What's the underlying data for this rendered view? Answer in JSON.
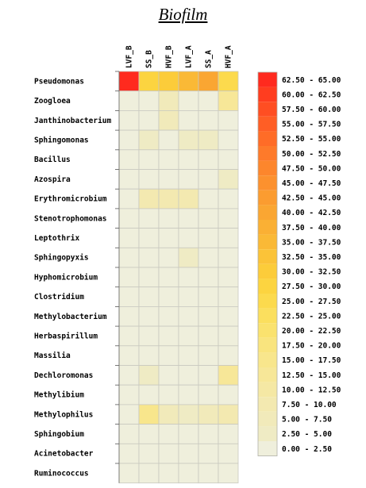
{
  "chart_data": {
    "type": "heatmap",
    "title": "Biofilm",
    "columns": [
      "LVF_B",
      "SS_B",
      "HVF_B",
      "LVF_A",
      "SS_A",
      "HVF_A"
    ],
    "rows": [
      "Pseudomonas",
      "Zoogloea",
      "Janthinobacterium",
      "Sphingomonas",
      "Bacillus",
      "Azospira",
      "Erythromicrobium",
      "Stenotrophomonas",
      "Leptothrix",
      "Sphingopyxis",
      "Hyphomicrobium",
      "Clostridium",
      "Methylobacterium",
      "Herbaspirillum",
      "Massilia",
      "Dechloromonas",
      "Methylibium",
      "Methylophilus",
      "Sphingobium",
      "Acinetobacter",
      "Ruminococcus"
    ],
    "values": [
      [
        64,
        28,
        30,
        37,
        40,
        26
      ],
      [
        1.5,
        1.5,
        6,
        1.5,
        1.5,
        14
      ],
      [
        1.5,
        1.5,
        6,
        1.5,
        1.5,
        1.5
      ],
      [
        1.5,
        4,
        1.5,
        3,
        3,
        1.5
      ],
      [
        1.5,
        1.5,
        1.5,
        1.5,
        1.5,
        1.5
      ],
      [
        1.5,
        1.5,
        1.5,
        1.5,
        1.5,
        3
      ],
      [
        1.5,
        8,
        8,
        8,
        1.5,
        1.5
      ],
      [
        1.5,
        1.5,
        1.5,
        1.5,
        1.5,
        1.5
      ],
      [
        1.5,
        1.5,
        1.5,
        1.5,
        1.5,
        1.5
      ],
      [
        1.5,
        1.5,
        1.5,
        4,
        1.5,
        1.5
      ],
      [
        1.5,
        1.5,
        1.5,
        1.5,
        1.5,
        1.5
      ],
      [
        1.5,
        1.5,
        1.5,
        1.5,
        1.5,
        1.5
      ],
      [
        1.5,
        1.5,
        1.5,
        1.5,
        1.5,
        1.5
      ],
      [
        1.5,
        1.5,
        1.5,
        1.5,
        1.5,
        1.5
      ],
      [
        1.5,
        1.5,
        1.5,
        1.5,
        1.5,
        1.5
      ],
      [
        1.5,
        3,
        1.5,
        1.5,
        1.5,
        14
      ],
      [
        1.5,
        1.5,
        1.5,
        1.5,
        1.5,
        1.5
      ],
      [
        1.5,
        16,
        6,
        3,
        7,
        8
      ],
      [
        1.5,
        1.5,
        1.5,
        1.5,
        1.5,
        1.5
      ],
      [
        1.5,
        1.5,
        1.5,
        1.5,
        1.5,
        1.5
      ],
      [
        1.5,
        1.5,
        1.5,
        1.5,
        1.5,
        1.5
      ]
    ],
    "legend": {
      "placement": "right",
      "bins": [
        {
          "label": "62.50 - 65.00",
          "color": "#ff2a1e"
        },
        {
          "label": "60.00 - 62.50",
          "color": "#ff3d1f"
        },
        {
          "label": "57.50 - 60.00",
          "color": "#ff4e22"
        },
        {
          "label": "55.00 - 57.50",
          "color": "#ff5e25"
        },
        {
          "label": "52.50 - 55.00",
          "color": "#ff6c27"
        },
        {
          "label": "50.00 - 52.50",
          "color": "#fe7a2a"
        },
        {
          "label": "47.50 - 50.00",
          "color": "#fd862c"
        },
        {
          "label": "45.00 - 47.50",
          "color": "#fc912e"
        },
        {
          "label": "42.50 - 45.00",
          "color": "#fb9c30"
        },
        {
          "label": "40.00 - 42.50",
          "color": "#faa632"
        },
        {
          "label": "37.50 - 40.00",
          "color": "#fab034"
        },
        {
          "label": "35.00 - 37.50",
          "color": "#fab936"
        },
        {
          "label": "32.50 - 35.00",
          "color": "#fbc338"
        },
        {
          "label": "30.00 - 32.50",
          "color": "#fccc3a"
        },
        {
          "label": "27.50 - 30.00",
          "color": "#fcd440"
        },
        {
          "label": "25.00 - 27.50",
          "color": "#fcda4d"
        },
        {
          "label": "22.50 - 25.00",
          "color": "#fbdf5e"
        },
        {
          "label": "20.00 - 22.50",
          "color": "#fae26e"
        },
        {
          "label": "17.50 - 20.00",
          "color": "#f9e47e"
        },
        {
          "label": "15.00 - 17.50",
          "color": "#f8e68c"
        },
        {
          "label": "12.50 - 15.00",
          "color": "#f7e798"
        },
        {
          "label": "10.00 - 12.50",
          "color": "#f5e8a4"
        },
        {
          "label": "7.50 - 10.00",
          "color": "#f3e9b0"
        },
        {
          "label": "5.00 - 7.50",
          "color": "#f1eaba"
        },
        {
          "label": "2.50 - 5.00",
          "color": "#efebc4"
        },
        {
          "label": "0.00 - 2.50",
          "color": "#efefdc"
        }
      ]
    }
  }
}
